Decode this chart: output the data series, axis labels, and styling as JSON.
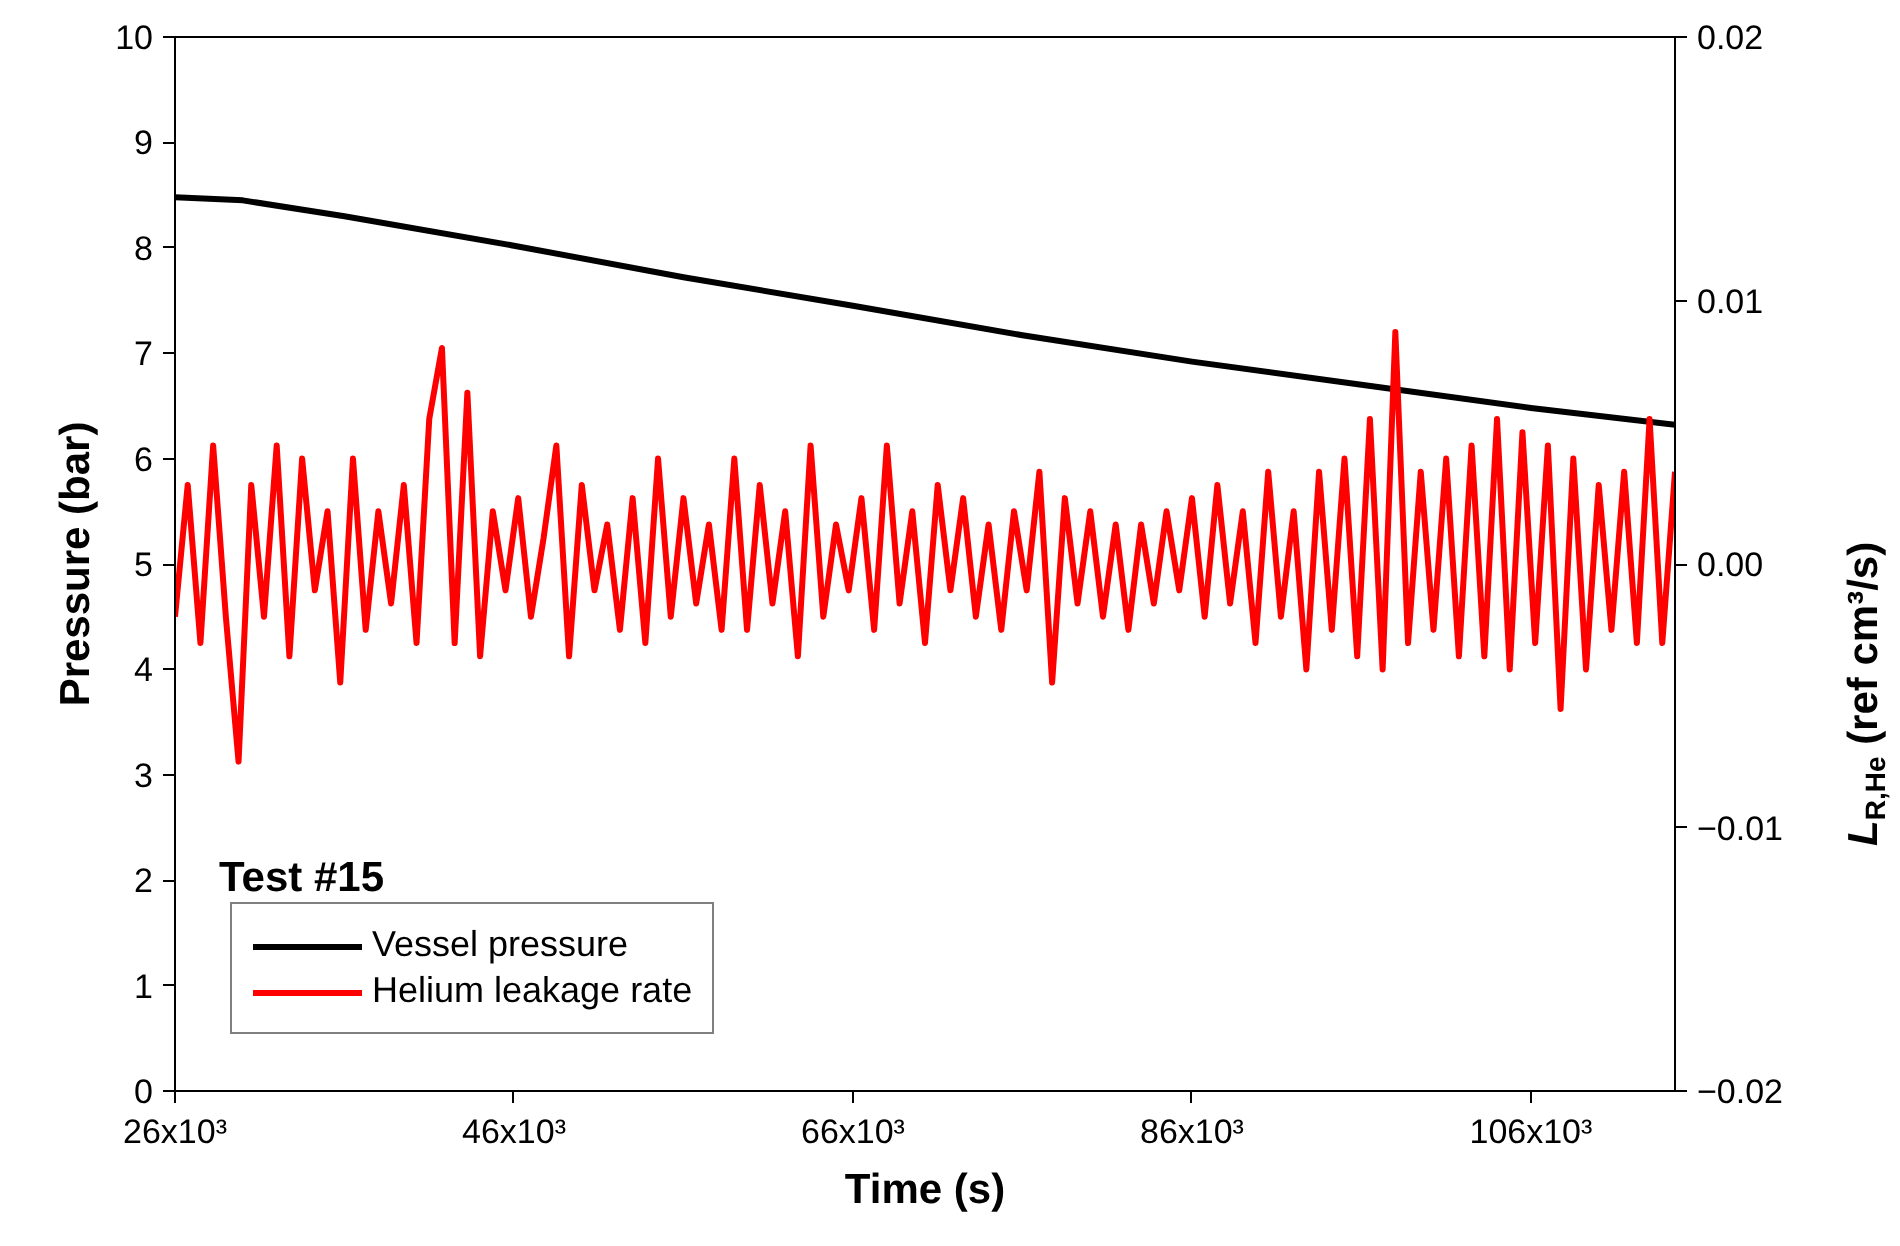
{
  "chart_data": {
    "type": "line",
    "xlabel": "Time (s)",
    "ylabel": "Pressure (bar)",
    "y2label": "L$_{R,He}$ (ref cm³/s)",
    "annotations": [
      "Test #15"
    ],
    "xlim": [
      26000,
      114500
    ],
    "xticks": [
      {
        "value": 26000,
        "label": "26x10³"
      },
      {
        "value": 46000,
        "label": "46x10³"
      },
      {
        "value": 66000,
        "label": "66x10³"
      },
      {
        "value": 86000,
        "label": "86x10³"
      },
      {
        "value": 106000,
        "label": "106x10³"
      }
    ],
    "ylim": [
      0,
      10
    ],
    "yticks": [
      0,
      1,
      2,
      3,
      4,
      5,
      6,
      7,
      8,
      9,
      10
    ],
    "y2lim": [
      -0.02,
      0.02
    ],
    "y2ticks": [
      -0.02,
      -0.01,
      {
        "value": 0,
        "label": "0.00"
      },
      0.01,
      0.02
    ],
    "grid": false,
    "legend": "bottom left",
    "line_style": "solid",
    "marker": "none",
    "series": [
      {
        "name": "Vessel pressure",
        "color": "#000000",
        "x": [
          26000,
          30000,
          36000,
          46000,
          56000,
          66000,
          76000,
          86000,
          96000,
          106000,
          114500
        ],
        "values": [
          8.48,
          8.45,
          8.3,
          8.02,
          7.72,
          7.45,
          7.17,
          6.92,
          6.7,
          6.48,
          6.32
        ]
      },
      {
        "name": "Helium leakage rate",
        "color": "#ff0000",
        "axis": "y2",
        "x": [
          26000,
          26750,
          27500,
          28250,
          29000,
          29750,
          30500,
          31250,
          32000,
          32750,
          33500,
          34250,
          35000,
          35750,
          36500,
          37250,
          38000,
          38750,
          39500,
          40250,
          41000,
          41750,
          42500,
          43250,
          44000,
          44750,
          45500,
          46250,
          47000,
          47750,
          48500,
          49250,
          50000,
          50750,
          51500,
          52250,
          53000,
          53750,
          54500,
          55250,
          56000,
          56750,
          57500,
          58250,
          59000,
          59750,
          60500,
          61250,
          62000,
          62750,
          63500,
          64250,
          65000,
          65750,
          66500,
          67250,
          68000,
          68750,
          69500,
          70250,
          71000,
          71750,
          72500,
          73250,
          74000,
          74750,
          75500,
          76250,
          77000,
          77750,
          78500,
          79250,
          80000,
          80750,
          81500,
          82250,
          83000,
          83750,
          84500,
          85250,
          86000,
          86750,
          87500,
          88250,
          89000,
          89750,
          90500,
          91250,
          92000,
          92750,
          93500,
          94250,
          95000,
          95750,
          96500,
          97250,
          98000,
          98750,
          99500,
          100250,
          101000,
          101750,
          102500,
          103250,
          104000,
          104750,
          105500,
          106250,
          107000,
          107750,
          108500,
          109250,
          110000,
          110750,
          111500,
          112250,
          113000,
          113750,
          114500
        ],
        "values": [
          -0.002,
          0.003,
          -0.003,
          0.0045,
          -0.002,
          -0.0075,
          0.003,
          -0.002,
          0.0045,
          -0.0035,
          0.004,
          -0.001,
          0.002,
          -0.0045,
          0.004,
          -0.0025,
          0.002,
          -0.0015,
          0.003,
          -0.003,
          0.0055,
          0.0082,
          -0.003,
          0.0065,
          -0.0035,
          0.002,
          -0.001,
          0.0025,
          -0.002,
          0.001,
          0.0045,
          -0.0035,
          0.003,
          -0.001,
          0.0015,
          -0.0025,
          0.0025,
          -0.003,
          0.004,
          -0.002,
          0.0025,
          -0.0015,
          0.0015,
          -0.0025,
          0.004,
          -0.0025,
          0.003,
          -0.0015,
          0.002,
          -0.0035,
          0.0045,
          -0.002,
          0.0015,
          -0.001,
          0.0025,
          -0.0025,
          0.0045,
          -0.0015,
          0.002,
          -0.003,
          0.003,
          -0.001,
          0.0025,
          -0.002,
          0.0015,
          -0.0025,
          0.002,
          -0.001,
          0.0035,
          -0.0045,
          0.0025,
          -0.0015,
          0.002,
          -0.002,
          0.0015,
          -0.0025,
          0.0015,
          -0.0015,
          0.002,
          -0.001,
          0.0025,
          -0.002,
          0.003,
          -0.0015,
          0.002,
          -0.003,
          0.0035,
          -0.002,
          0.002,
          -0.004,
          0.0035,
          -0.0025,
          0.004,
          -0.0035,
          0.0055,
          -0.004,
          0.0088,
          -0.003,
          0.0035,
          -0.0025,
          0.004,
          -0.0035,
          0.0045,
          -0.0035,
          0.0055,
          -0.004,
          0.005,
          -0.003,
          0.0045,
          -0.0055,
          0.004,
          -0.004,
          0.003,
          -0.0025,
          0.0035,
          -0.003,
          0.0055,
          -0.003,
          0.0035
        ]
      }
    ]
  }
}
